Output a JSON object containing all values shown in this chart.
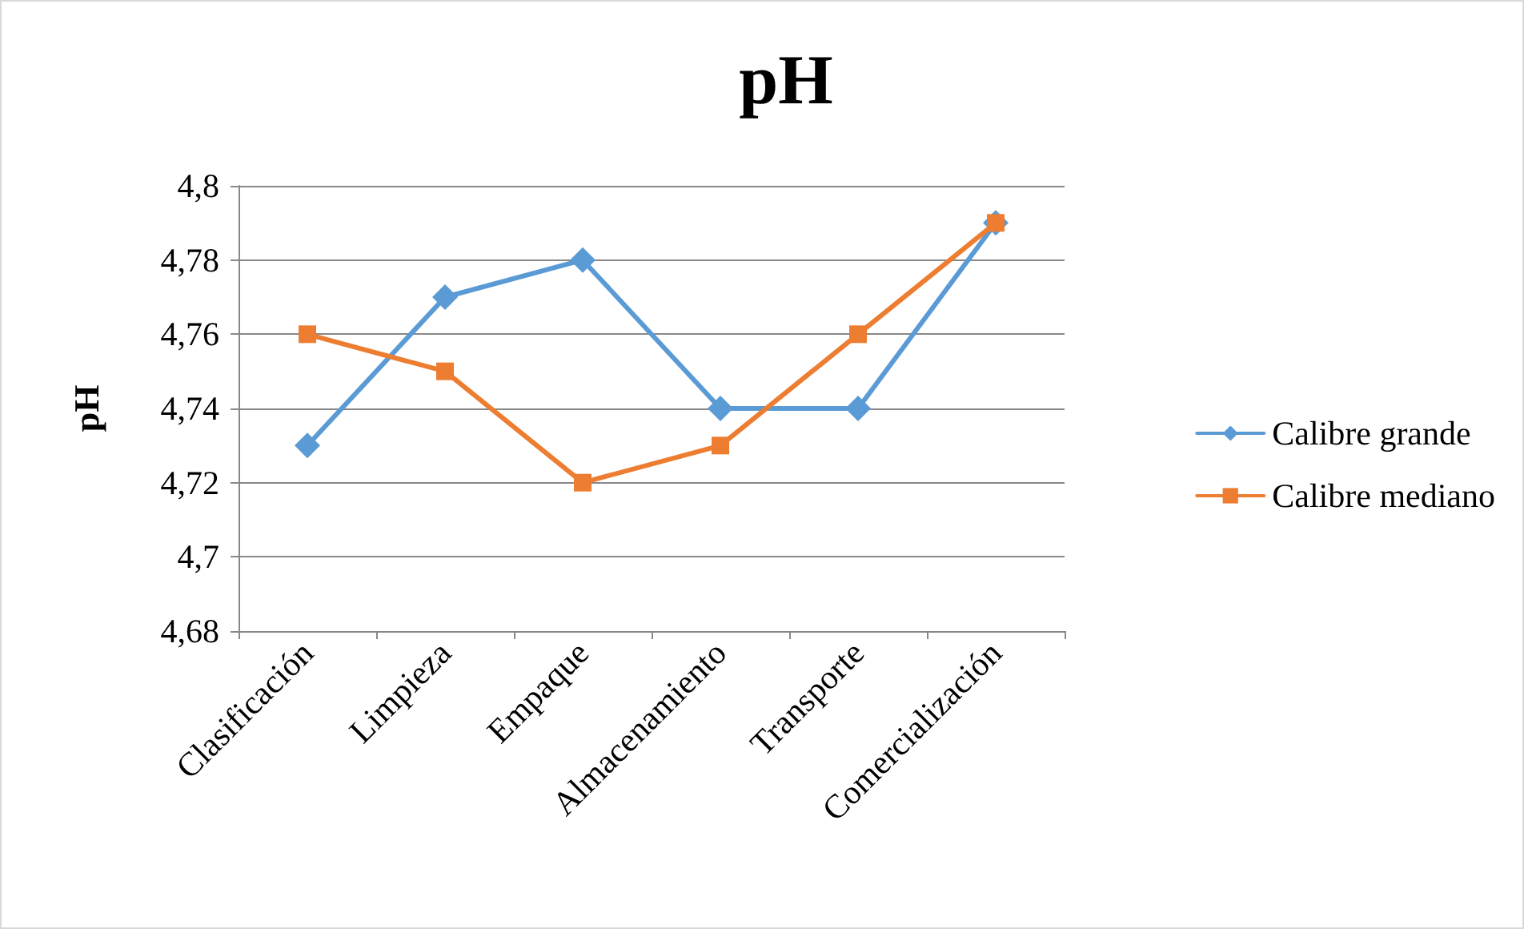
{
  "chart_data": {
    "type": "line",
    "title": "pH",
    "ylabel": "pH",
    "categories": [
      "Clasificación",
      "Limpieza",
      "Empaque",
      "Almacenamiento",
      "Transporte",
      "Comercialización"
    ],
    "series": [
      {
        "name": "Calibre grande",
        "color": "#5b9bd5",
        "marker": "diamond",
        "values": [
          4.73,
          4.77,
          4.78,
          4.74,
          4.74,
          4.79
        ]
      },
      {
        "name": "Calibre mediano",
        "color": "#ed7d31",
        "marker": "square",
        "values": [
          4.76,
          4.75,
          4.72,
          4.73,
          4.76,
          4.79
        ]
      }
    ],
    "ylim": [
      4.68,
      4.8
    ],
    "yticks": [
      {
        "value": 4.68,
        "label": "4,68"
      },
      {
        "value": 4.7,
        "label": "4,7"
      },
      {
        "value": 4.72,
        "label": "4,72"
      },
      {
        "value": 4.74,
        "label": "4,74"
      },
      {
        "value": 4.76,
        "label": "4,76"
      },
      {
        "value": 4.78,
        "label": "4,78"
      },
      {
        "value": 4.8,
        "label": "4,8"
      }
    ],
    "grid": "y",
    "legend": "right",
    "line_style": "solid"
  }
}
